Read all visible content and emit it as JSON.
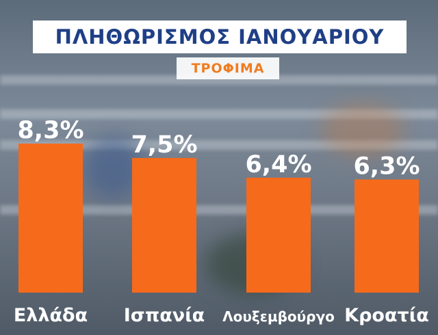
{
  "header": {
    "title": "ΠΛΗΘΩΡΙΣΜΟΣ ΙΑΝΟΥΑΡΙΟΥ",
    "subtitle": "ΤΡΟΦΙΜΑ"
  },
  "colors": {
    "bar": "#f66a1c",
    "title_text": "#1f3f86",
    "subtitle_text": "#f07c1f",
    "label_text": "#ffffff"
  },
  "chart_data": {
    "type": "bar",
    "title": "ΠΛΗΘΩΡΙΣΜΟΣ ΙΑΝΟΥΑΡΙΟΥ",
    "subtitle": "ΤΡΟΦΙΜΑ",
    "categories": [
      "Ελλάδα",
      "Ισπανία",
      "Λουξεμβούργο",
      "Κροατία"
    ],
    "values": [
      8.3,
      7.5,
      6.4,
      6.3
    ],
    "value_labels": [
      "8,3%",
      "7,5%",
      "6,4%",
      "6,3%"
    ],
    "xlabel": "",
    "ylabel": "",
    "ylim": [
      0,
      8.3
    ],
    "grid": false,
    "legend": "none"
  }
}
